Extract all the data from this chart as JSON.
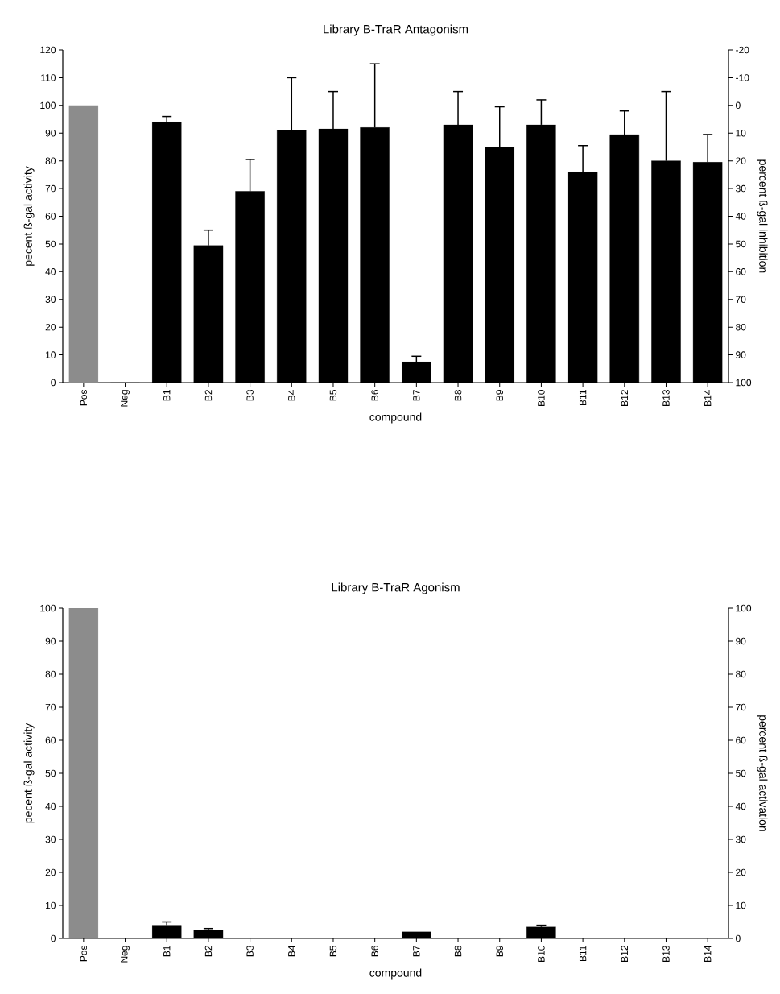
{
  "chart_data": [
    {
      "type": "bar",
      "title": "Library B-TraR Antagonism",
      "xlabel": "compound",
      "ylabel": "pecent ß-gal activity",
      "y2label": "percent ß-gal inhibition",
      "categories": [
        "Pos",
        "Neg",
        "B1",
        "B2",
        "B3",
        "B4",
        "B5",
        "B6",
        "B7",
        "B8",
        "B9",
        "B10",
        "B11",
        "B12",
        "B13",
        "B14"
      ],
      "values": [
        100,
        0,
        94,
        49.5,
        69,
        91,
        91.5,
        92,
        7.5,
        93,
        85,
        93,
        76,
        89.5,
        80,
        79.5
      ],
      "errors": [
        null,
        null,
        [
          94,
          96
        ],
        [
          49.5,
          55
        ],
        [
          69,
          80.5
        ],
        [
          91,
          110
        ],
        [
          91.5,
          105
        ],
        [
          92,
          115
        ],
        [
          7.5,
          9.5
        ],
        [
          93,
          105
        ],
        [
          85,
          99.5
        ],
        [
          93,
          102
        ],
        [
          76,
          85.5
        ],
        [
          89.5,
          98
        ],
        [
          80,
          105
        ],
        [
          79.5,
          89.5
        ]
      ],
      "colors": [
        "#8c8c8c",
        "#000000",
        "#000000",
        "#000000",
        "#000000",
        "#000000",
        "#000000",
        "#000000",
        "#000000",
        "#000000",
        "#000000",
        "#000000",
        "#000000",
        "#000000",
        "#000000",
        "#000000"
      ],
      "ylim": [
        0,
        120
      ],
      "yticks": [
        0,
        10,
        20,
        30,
        40,
        50,
        60,
        70,
        80,
        90,
        100,
        110,
        120
      ],
      "y2lim": [
        100,
        -20
      ],
      "y2ticks": [
        100,
        90,
        80,
        70,
        60,
        50,
        40,
        30,
        20,
        10,
        0,
        -10,
        -20
      ]
    },
    {
      "type": "bar",
      "title": "Library B-TraR Agonism",
      "xlabel": "compound",
      "ylabel": "pecent ß-gal activity",
      "y2label": "percent ß-gal activation",
      "categories": [
        "Pos",
        "Neg",
        "B1",
        "B2",
        "B3",
        "B4",
        "B5",
        "B6",
        "B7",
        "B8",
        "B9",
        "B10",
        "B11",
        "B12",
        "B13",
        "B14"
      ],
      "values": [
        100,
        0,
        4,
        2.5,
        0,
        0,
        0,
        0,
        2,
        0,
        0,
        3.5,
        0,
        0,
        0,
        0
      ],
      "errors": [
        null,
        null,
        [
          4,
          5
        ],
        [
          2.5,
          3
        ],
        null,
        null,
        null,
        null,
        null,
        null,
        null,
        [
          3.5,
          4
        ],
        null,
        null,
        null,
        null
      ],
      "colors": [
        "#8c8c8c",
        "#000000",
        "#000000",
        "#000000",
        "#000000",
        "#000000",
        "#000000",
        "#000000",
        "#000000",
        "#000000",
        "#000000",
        "#000000",
        "#000000",
        "#000000",
        "#000000",
        "#000000"
      ],
      "ylim": [
        0,
        100
      ],
      "yticks": [
        0,
        10,
        20,
        30,
        40,
        50,
        60,
        70,
        80,
        90,
        100
      ],
      "y2lim": [
        0,
        100
      ],
      "y2ticks": [
        0,
        10,
        20,
        30,
        40,
        50,
        60,
        70,
        80,
        90,
        100
      ]
    }
  ]
}
